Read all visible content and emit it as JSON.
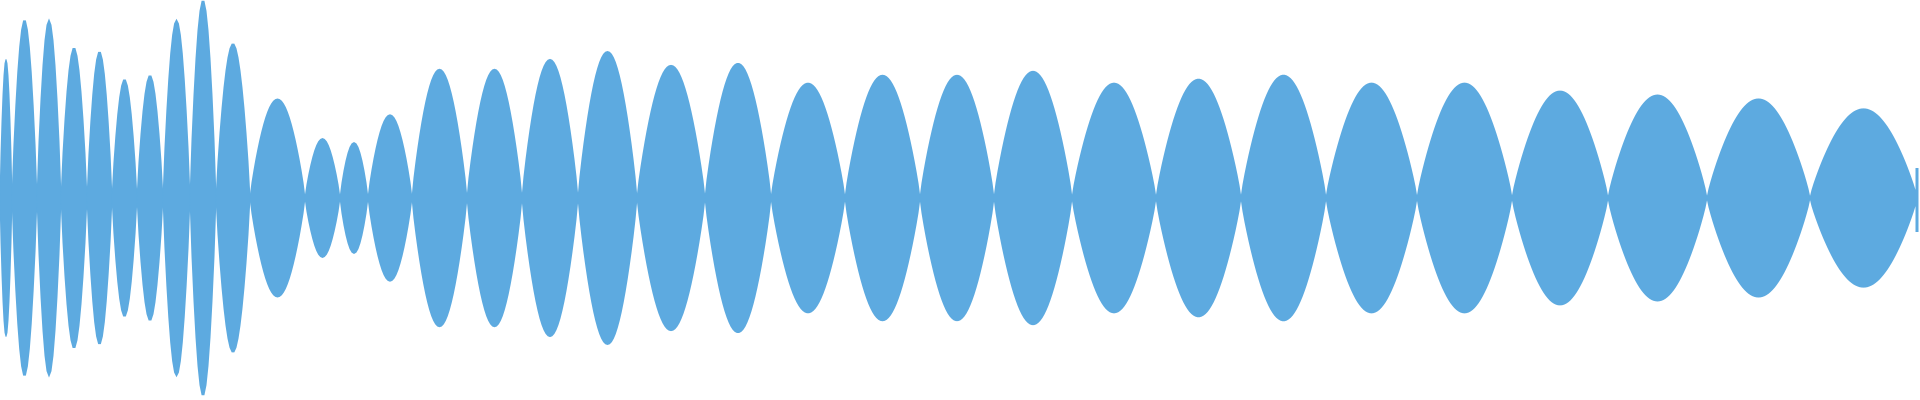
{
  "waveform": {
    "color": "#5DAAE0",
    "background": "#FFFFFF",
    "peak_amplitudes": [
      0.7,
      0.9,
      0.9,
      0.76,
      0.74,
      0.6,
      0.62,
      0.9,
      1.0,
      0.78,
      0.5,
      0.3,
      0.28,
      0.42,
      0.65,
      0.65,
      0.7,
      0.74,
      0.67,
      0.68,
      0.58,
      0.62,
      0.62,
      0.64,
      0.58,
      0.6,
      0.62,
      0.58,
      0.58,
      0.54,
      0.52,
      0.5,
      0.45
    ],
    "zero_crossings": [
      0.0,
      0.0128,
      0.0255,
      0.0383,
      0.051,
      0.0638,
      0.0766,
      0.0894,
      0.1021,
      0.1403,
      0.1785,
      0.2168,
      0.255,
      0.2934,
      0.3316,
      0.3697,
      0.4019,
      0.44,
      0.4783,
      0.5179,
      0.5587,
      0.602,
      0.6466,
      0.6913,
      0.736,
      0.7806,
      0.8253,
      0.87,
      0.9146,
      0.9592,
      0.9978,
      0.9978,
      0.9978,
      1.0
    ]
  }
}
